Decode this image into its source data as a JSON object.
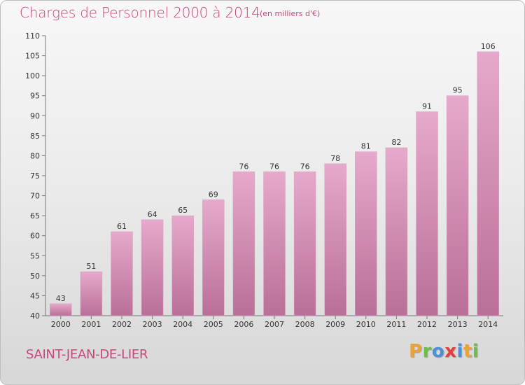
{
  "title": "Charges de Personnel 2000 à 2014",
  "subtitle": "(en milliers d'€)",
  "commune": "SAINT-JEAN-DE-LIER",
  "logo": {
    "letters": [
      "P",
      "r",
      "o",
      "x",
      "i",
      "t",
      "i"
    ],
    "colors": [
      "#e8a33a",
      "#6cbf4a",
      "#4c8fd6",
      "#e0403c",
      "#4c8fd6",
      "#e8a33a",
      "#6cbf4a"
    ]
  },
  "chart_data": {
    "type": "bar",
    "title": "Charges de Personnel 2000 à 2014",
    "subtitle": "(en milliers d'€)",
    "xlabel": "",
    "ylabel": "",
    "categories": [
      "2000",
      "2001",
      "2002",
      "2003",
      "2004",
      "2005",
      "2006",
      "2007",
      "2008",
      "2009",
      "2010",
      "2011",
      "2012",
      "2013",
      "2014"
    ],
    "values": [
      43,
      51,
      61,
      64,
      65,
      69,
      76,
      76,
      76,
      78,
      81,
      82,
      91,
      95,
      106
    ],
    "ylim": [
      40,
      110
    ],
    "yticks": [
      40,
      45,
      50,
      55,
      60,
      65,
      70,
      75,
      80,
      85,
      90,
      95,
      100,
      105,
      110
    ],
    "grid": false,
    "bar_color_top": "#e6a9cb",
    "bar_color_bottom": "#b96f98"
  }
}
